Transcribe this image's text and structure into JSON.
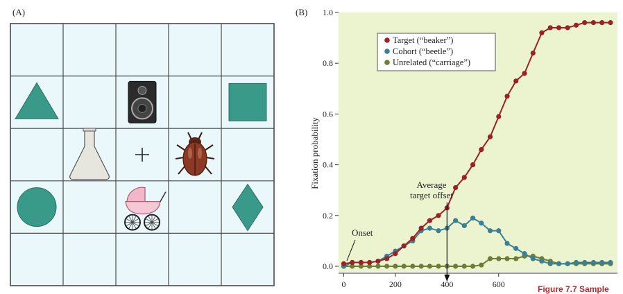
{
  "panel_a": {
    "label": "(A)",
    "grid": {
      "rows": 5,
      "cols": 5,
      "fill": "#eaf8fb",
      "line": "#4a4a4a"
    },
    "items": [
      {
        "row": 1,
        "col": 0,
        "icon": "triangle-icon"
      },
      {
        "row": 1,
        "col": 2,
        "icon": "speaker-icon"
      },
      {
        "row": 1,
        "col": 4,
        "icon": "square-icon"
      },
      {
        "row": 2,
        "col": 1,
        "icon": "beaker-icon"
      },
      {
        "row": 2,
        "col": 2,
        "icon": "fixation-cross-icon"
      },
      {
        "row": 2,
        "col": 3,
        "icon": "beetle-icon"
      },
      {
        "row": 3,
        "col": 0,
        "icon": "circle-icon"
      },
      {
        "row": 3,
        "col": 2,
        "icon": "baby-carriage-icon"
      },
      {
        "row": 3,
        "col": 4,
        "icon": "diamond-icon"
      }
    ],
    "shape_color": "#3a9a8a"
  },
  "panel_b": {
    "label": "(B)",
    "annotation_onset": "Onset",
    "annotation_offset": "Average\ntarget offset",
    "plot_bg": "#ecf3cf"
  },
  "caption_fragment": "Figure 7.7  Sample",
  "chart_data": {
    "type": "line",
    "ylabel": "Fixation probability",
    "xlabel": "",
    "xlim": [
      -20,
      1060
    ],
    "ylim": [
      0,
      1.0
    ],
    "x_ticks": [
      0,
      200,
      400,
      600
    ],
    "y_ticks": [
      0.0,
      0.2,
      0.4,
      0.6,
      0.8,
      1.0
    ],
    "y_tick_labels": [
      "0.0",
      "0.2",
      "0.4",
      "0.6",
      "0.8",
      "1.0"
    ],
    "legend_position": "top-left",
    "marker_x": 400,
    "x": [
      0,
      33,
      67,
      100,
      133,
      167,
      200,
      233,
      267,
      300,
      333,
      367,
      400,
      433,
      467,
      500,
      533,
      567,
      600,
      633,
      667,
      700,
      733,
      767,
      800,
      833,
      867,
      900,
      933,
      967,
      1000,
      1033
    ],
    "series": [
      {
        "name": "Target (“beaker”)",
        "color": "#9b2224",
        "values": [
          0.01,
          0.015,
          0.015,
          0.015,
          0.02,
          0.03,
          0.05,
          0.08,
          0.11,
          0.15,
          0.18,
          0.2,
          0.23,
          0.31,
          0.35,
          0.4,
          0.46,
          0.51,
          0.59,
          0.67,
          0.73,
          0.76,
          0.84,
          0.92,
          0.94,
          0.94,
          0.94,
          0.95,
          0.96,
          0.96,
          0.96,
          0.96
        ]
      },
      {
        "name": "Cohort (“beetle”)",
        "color": "#3b7f95",
        "values": [
          0.0,
          0.015,
          0.015,
          0.015,
          0.02,
          0.04,
          0.06,
          0.08,
          0.1,
          0.14,
          0.15,
          0.14,
          0.15,
          0.18,
          0.16,
          0.19,
          0.17,
          0.14,
          0.14,
          0.09,
          0.07,
          0.05,
          0.03,
          0.02,
          0.01,
          0.01,
          0.01,
          0.015,
          0.015,
          0.015,
          0.015,
          0.015
        ]
      },
      {
        "name": "Unrelated (“carriage”)",
        "color": "#6e7c35",
        "values": [
          0.0,
          0.0,
          0.0,
          0.0,
          0.0,
          0.0,
          0.0,
          0.0,
          0.0,
          0.0,
          0.0,
          0.0,
          0.0,
          0.0,
          0.0,
          0.0,
          0.005,
          0.03,
          0.03,
          0.03,
          0.03,
          0.04,
          0.04,
          0.03,
          0.02,
          0.01,
          0.01,
          0.01,
          0.01,
          0.01,
          0.01,
          0.01
        ]
      }
    ]
  }
}
